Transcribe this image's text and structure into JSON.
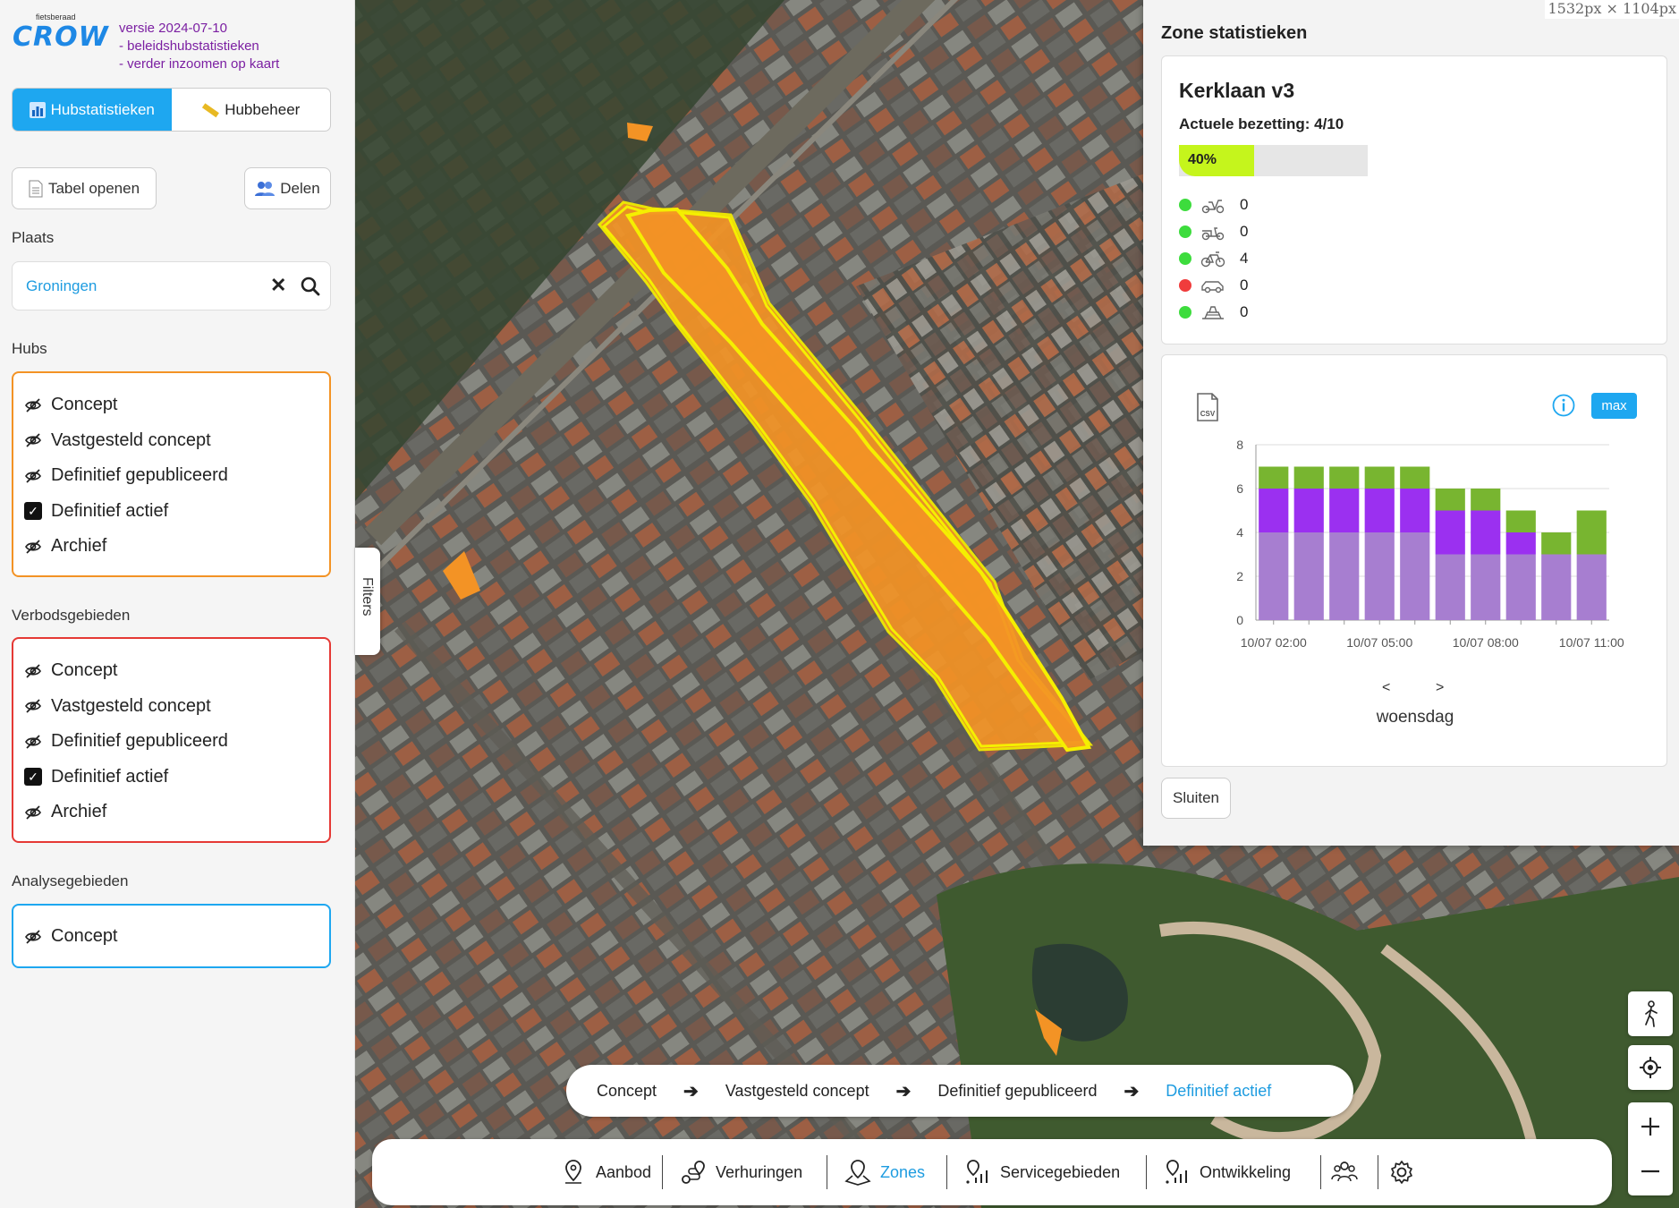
{
  "brand": {
    "small": "fietsberaad",
    "big": "CROW"
  },
  "version_lines": [
    "versie 2024-07-10",
    "- beleidshubstatistieken",
    "- verder inzoomen op kaart"
  ],
  "tabs": [
    {
      "label": "Hubstatistieken",
      "icon": "bar-chart-icon",
      "active": true
    },
    {
      "label": "Hubbeheer",
      "icon": "ruler-icon",
      "active": false
    }
  ],
  "actions": {
    "table_label": "Tabel openen",
    "share_label": "Delen"
  },
  "place": {
    "label": "Plaats",
    "value": "Groningen",
    "clear_glyph": "✕"
  },
  "hubs": {
    "label": "Hubs",
    "border_color": "#f39325",
    "items": [
      {
        "label": "Concept",
        "checked": false
      },
      {
        "label": "Vastgesteld concept",
        "checked": false
      },
      {
        "label": "Definitief gepubliceerd",
        "checked": false
      },
      {
        "label": "Definitief actief",
        "checked": true
      },
      {
        "label": "Archief",
        "checked": false
      }
    ]
  },
  "verbod": {
    "label": "Verbodsgebieden",
    "border_color": "#e53935",
    "items": [
      {
        "label": "Concept",
        "checked": false
      },
      {
        "label": "Vastgesteld concept",
        "checked": false
      },
      {
        "label": "Definitief gepubliceerd",
        "checked": false
      },
      {
        "label": "Definitief actief",
        "checked": true
      },
      {
        "label": "Archief",
        "checked": false
      }
    ]
  },
  "analyse": {
    "label": "Analysegebieden",
    "border_color": "#1ea7f0",
    "items": [
      {
        "label": "Concept",
        "checked": false
      }
    ]
  },
  "filters_handle": "Filters",
  "dimensions_label": "1532px × 1104px",
  "stats": {
    "title": "Zone statistieken",
    "zone_name": "Kerklaan v3",
    "occupancy_text": "Actuele bezetting: 4/10",
    "occupancy_fraction": 0.4,
    "occupancy_label": "40%",
    "vehicles": [
      {
        "type": "scooter-icon",
        "count": "0",
        "status": "#3ddc3d"
      },
      {
        "type": "cargo-bike-icon",
        "count": "0",
        "status": "#3ddc3d"
      },
      {
        "type": "bicycle-icon",
        "count": "4",
        "status": "#3ddc3d"
      },
      {
        "type": "car-icon",
        "count": "0",
        "status": "#f03c3c"
      },
      {
        "type": "other-vehicle-icon",
        "count": "0",
        "status": "#3ddc3d"
      }
    ],
    "csv_label": "CSV",
    "max_label": "max",
    "prev": "<",
    "next": ">",
    "day": "woensdag",
    "close_label": "Sluiten"
  },
  "chart_data": {
    "type": "bar",
    "stacked": true,
    "categories": [
      "10/07 02:00",
      "10/07 03:00",
      "10/07 04:00",
      "10/07 05:00",
      "10/07 06:00",
      "10/07 07:00",
      "10/07 08:00",
      "10/07 09:00",
      "10/07 10:00",
      "10/07 11:00"
    ],
    "tick_labels": [
      "10/07 02:00",
      "10/07 05:00",
      "10/07 08:00",
      "10/07 11:00"
    ],
    "series": [
      {
        "color": "#a77ed0",
        "values": [
          4,
          4,
          4,
          4,
          4,
          3,
          3,
          3,
          3,
          3
        ]
      },
      {
        "color": "#9b30f0",
        "values": [
          2,
          2,
          2,
          2,
          2,
          2,
          2,
          1,
          0,
          0
        ]
      },
      {
        "color": "#78b530",
        "values": [
          1,
          1,
          1,
          1,
          1,
          1,
          1,
          1,
          1,
          2
        ]
      }
    ],
    "yticks": [
      0,
      2,
      4,
      6,
      8
    ],
    "ylim": [
      0,
      8
    ],
    "grid": true
  },
  "pipeline": {
    "steps": [
      "Concept",
      "Vastgesteld concept",
      "Definitief gepubliceerd",
      "Definitief actief"
    ],
    "active_index": 3,
    "arrow": "➔"
  },
  "nav": {
    "items": [
      {
        "label": "Aanbod",
        "icon": "map-pin-icon"
      },
      {
        "label": "Verhuringen",
        "icon": "route-icon"
      },
      {
        "label": "Zones",
        "icon": "zone-pin-icon",
        "active": true
      },
      {
        "label": "Servicegebieden",
        "icon": "service-area-icon"
      },
      {
        "label": "Ontwikkeling",
        "icon": "development-icon"
      }
    ],
    "extra_icons": [
      "users-icon",
      "settings-icon"
    ]
  },
  "map_controls": [
    "pedestrian-icon",
    "locate-icon",
    "zoom-in-icon",
    "zoom-out-icon"
  ],
  "map_colors": {
    "zone_fill": "#f39325",
    "zone_stroke": "#f5ef00"
  }
}
